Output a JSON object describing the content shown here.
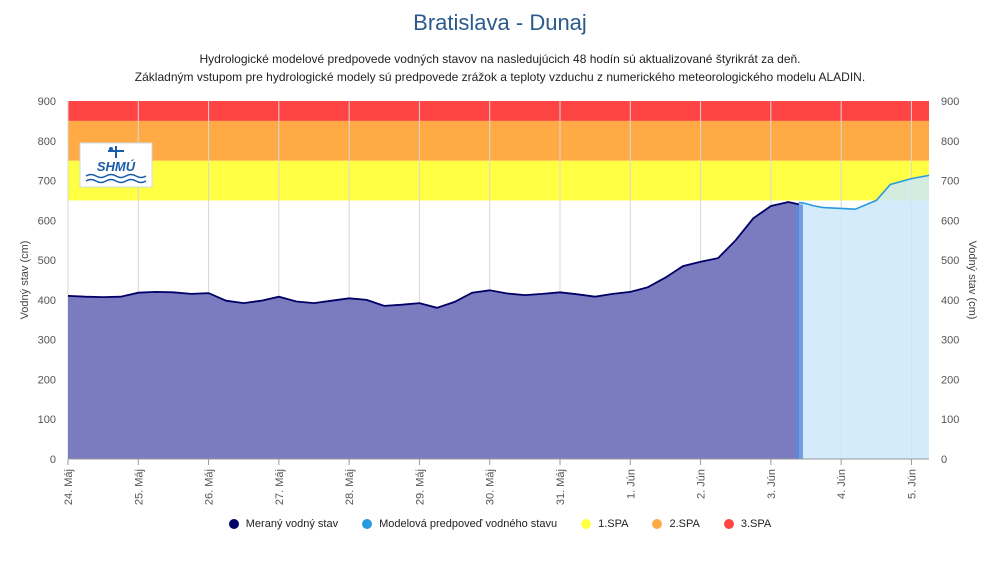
{
  "chart_data": {
    "type": "area",
    "title": "Bratislava - Dunaj",
    "subtitle_lines": [
      "Hydrologické modelové predpovede vodných stavov na nasledujúcich 48 hodín sú aktualizované štyrikrát za deň.",
      "Základným vstupom pre hydrologické modely sú predpovede zrážok a teploty vzduchu z numerického meteorologického modelu ALADIN."
    ],
    "ylabel": "Vodný stav (cm)",
    "ylim": [
      0,
      900
    ],
    "yticks": [
      "0",
      "100",
      "200",
      "300",
      "400",
      "500",
      "600",
      "700",
      "800",
      "900"
    ],
    "x_unit": "days since 24. Máj 00:00",
    "xlim": [
      0,
      12.25
    ],
    "categories": [
      "24. Máj",
      "25. Máj",
      "26. Máj",
      "27. Máj",
      "28. Máj",
      "29. Máj",
      "30. Máj",
      "31. Máj",
      "1. Jún",
      "2. Jún",
      "3. Jún",
      "4. Jún",
      "5. Jún"
    ],
    "bands": [
      {
        "name": "1.SPA",
        "from": 650,
        "to": 750,
        "color": "#ffff44"
      },
      {
        "name": "2.SPA",
        "from": 750,
        "to": 850,
        "color": "#ffaa44"
      },
      {
        "name": "3.SPA",
        "from": 850,
        "to": 900,
        "color": "#ff4444"
      }
    ],
    "series": [
      {
        "name": "Meraný vodný stav",
        "color": "#000066",
        "fill": "#7b7bc0",
        "x": [
          0,
          0.25,
          0.5,
          0.75,
          1,
          1.25,
          1.5,
          1.75,
          2,
          2.25,
          2.5,
          2.75,
          3,
          3.25,
          3.5,
          3.75,
          4,
          4.25,
          4.5,
          4.75,
          5,
          5.25,
          5.5,
          5.75,
          6,
          6.25,
          6.5,
          6.75,
          7,
          7.25,
          7.5,
          7.75,
          8,
          8.25,
          8.5,
          8.75,
          9,
          9.25,
          9.5,
          9.75,
          10,
          10.25,
          10.4
        ],
        "values": [
          410,
          408,
          407,
          408,
          418,
          420,
          419,
          415,
          417,
          398,
          392,
          398,
          408,
          396,
          392,
          398,
          404,
          400,
          385,
          388,
          392,
          380,
          395,
          418,
          424,
          416,
          412,
          415,
          419,
          414,
          408,
          415,
          420,
          432,
          456,
          485,
          496,
          505,
          550,
          605,
          636,
          646,
          640
        ]
      },
      {
        "name": "Modelová predpoveď vodného stavu",
        "color": "#2a9ae0",
        "fill": "#cce8fb",
        "x": [
          10.4,
          10.5,
          10.6,
          10.75,
          11,
          11.2,
          11.5,
          11.7,
          12,
          12.25
        ],
        "values": [
          645,
          642,
          637,
          632,
          630,
          628,
          650,
          690,
          705,
          713
        ]
      }
    ]
  },
  "logo": {
    "text": "SHMÚ"
  },
  "legend": [
    {
      "label": "Meraný vodný stav",
      "color": "#000066"
    },
    {
      "label": "Modelová predpoveď vodného stavu",
      "color": "#2a9ae0"
    },
    {
      "label": "1.SPA",
      "color": "#ffff44"
    },
    {
      "label": "2.SPA",
      "color": "#ffaa44"
    },
    {
      "label": "3.SPA",
      "color": "#ff4444"
    }
  ]
}
